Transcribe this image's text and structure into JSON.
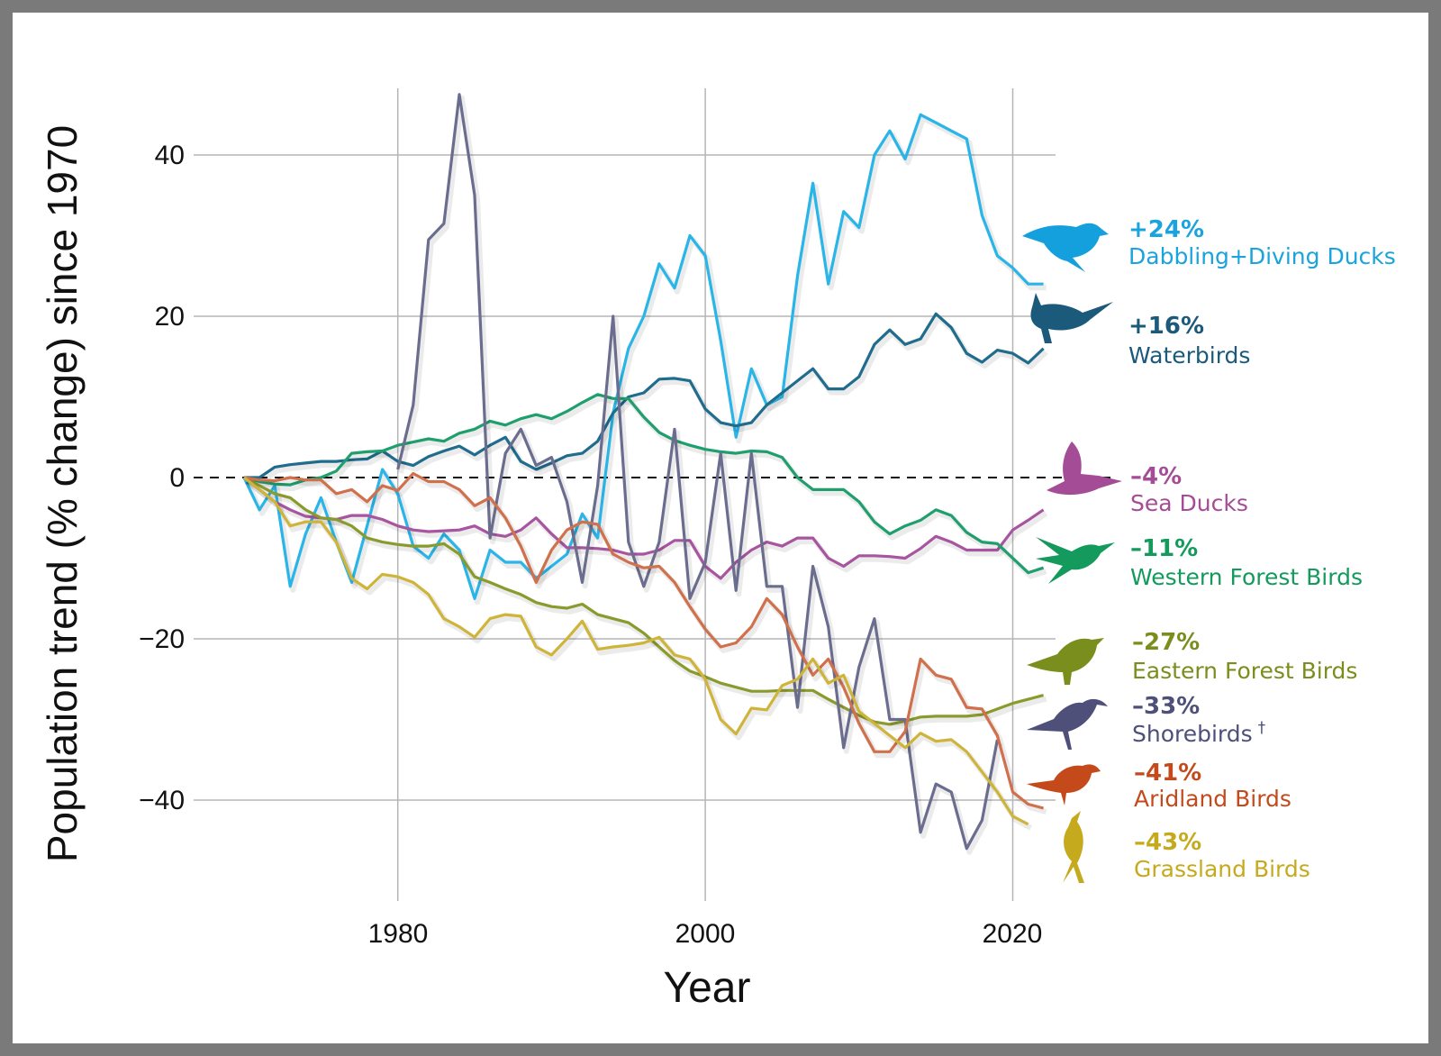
{
  "chart_data": {
    "type": "line",
    "title": "",
    "xlabel": "Year",
    "ylabel": "Population trend (% change) since 1970",
    "xlim": [
      1970,
      2022
    ],
    "ylim": [
      -50,
      50
    ],
    "x_ticks": [
      "1980",
      "2000",
      "2020"
    ],
    "y_ticks": [
      "40",
      "20",
      "0",
      "−20",
      "−40"
    ],
    "grid": true,
    "reference_line": {
      "y": 0,
      "style": "dashed"
    },
    "legend_placement": "right",
    "series": [
      {
        "name": "Dabbling+Diving Ducks",
        "label": "+24%",
        "color": "#29b5e8",
        "label_color": "#1aa3dc",
        "icon": "duck-silhouette-icon",
        "start": 1970,
        "values": [
          0,
          -4,
          -1,
          -13.5,
          -7,
          -2.5,
          -8,
          -13,
          -6,
          1,
          -2,
          -8.5,
          -10,
          -7,
          -9,
          -15,
          -9,
          -10.5,
          -10.5,
          -12.5,
          -11,
          -9.5,
          -4.5,
          -7.5,
          8,
          16,
          20,
          26.5,
          23.5,
          30,
          27.5,
          17,
          5,
          13.5,
          9,
          10,
          25,
          36.5,
          24,
          33,
          31,
          40,
          43,
          39.5,
          45,
          44,
          43,
          42,
          32.5,
          27.5,
          26,
          24,
          24
        ]
      },
      {
        "name": "Waterbirds",
        "label": "+16%",
        "color": "#1f6c8c",
        "label_color": "#1b5a7a",
        "icon": "waterbird-silhouette-icon",
        "start": 1970,
        "values": [
          0,
          0,
          1.3,
          1.6,
          1.8,
          2,
          2,
          2.2,
          2.3,
          3.3,
          2,
          1.5,
          2.6,
          3.3,
          3.9,
          2.8,
          4,
          5,
          2,
          1,
          1.8,
          2.7,
          3,
          4.5,
          8,
          10,
          10.5,
          12.2,
          12.3,
          12,
          8.5,
          6.8,
          6.4,
          6.8,
          9,
          10.5,
          12,
          13.5,
          11,
          11,
          12.5,
          16.5,
          18.3,
          16.5,
          17.2,
          20.3,
          18.6,
          15.4,
          14.3,
          15.8,
          15.4,
          14.2,
          16
        ]
      },
      {
        "name": "Sea Ducks",
        "label": "–4%",
        "color": "#a855a0",
        "label_color": "#a44d96",
        "icon": "sea-duck-silhouette-icon",
        "start": 1970,
        "values": [
          0,
          -1.5,
          -3,
          -4,
          -4.8,
          -5,
          -5.2,
          -4.7,
          -4.7,
          -5.2,
          -6,
          -6.5,
          -6.7,
          -6.6,
          -6.5,
          -6,
          -7,
          -7.3,
          -6.5,
          -5,
          -7,
          -8.7,
          -8.7,
          -8.8,
          -9,
          -9.5,
          -9.5,
          -9,
          -7.8,
          -7.8,
          -11,
          -12.5,
          -10.5,
          -9,
          -8,
          -8.5,
          -7.5,
          -7.5,
          -10,
          -11,
          -9.7,
          -9.7,
          -9.8,
          -10,
          -8.8,
          -7.3,
          -8,
          -9,
          -9,
          -9,
          -6.5,
          -5.3,
          -4
        ]
      },
      {
        "name": "Western Forest Birds",
        "label": "–11%",
        "color": "#1f9e6e",
        "label_color": "#139a5c",
        "icon": "hummingbird-silhouette-icon",
        "start": 1970,
        "values": [
          0,
          -0.5,
          -0.8,
          -0.9,
          -0.3,
          0,
          0.8,
          3,
          3.2,
          3.3,
          4,
          4.4,
          4.8,
          4.5,
          5.5,
          6,
          7,
          6.5,
          7.3,
          7.8,
          7.3,
          8.2,
          9.3,
          10.3,
          9.8,
          9.8,
          7.5,
          5.6,
          4.6,
          4,
          3.5,
          3.2,
          3,
          3.3,
          3.2,
          2.5,
          0,
          -1.5,
          -1.5,
          -1.5,
          -3,
          -5.5,
          -7,
          -6,
          -5.3,
          -4,
          -4.7,
          -6.8,
          -8,
          -8.2,
          -10,
          -11.8,
          -11.2
        ]
      },
      {
        "name": "Eastern Forest Birds",
        "label": "–27%",
        "color": "#8a9a2c",
        "label_color": "#7a8e1e",
        "icon": "songbird-silhouette-icon",
        "start": 1970,
        "values": [
          0,
          -1,
          -2,
          -2.5,
          -4,
          -5,
          -5.2,
          -6,
          -7.5,
          -8,
          -8.3,
          -8.5,
          -8.5,
          -8.2,
          -9.5,
          -12.3,
          -13,
          -13.8,
          -14.5,
          -15.5,
          -16,
          -16.2,
          -15.7,
          -17,
          -17.5,
          -18,
          -19.3,
          -21,
          -22.7,
          -24,
          -24.7,
          -25.5,
          -26,
          -26.5,
          -26.5,
          -26.4,
          -26.4,
          -26.4,
          -27.5,
          -28.5,
          -29.5,
          -30.3,
          -30.6,
          -30.2,
          -29.7,
          -29.6,
          -29.6,
          -29.6,
          -29.4,
          -28.7,
          -28,
          -27.5,
          -27
        ]
      },
      {
        "name": "Shorebirds",
        "name_suffix": "†",
        "label": "–33%",
        "color": "#6b6d8e",
        "label_color": "#4e507a",
        "icon": "shorebird-silhouette-icon",
        "start": 1980,
        "values": [
          1,
          9,
          29.5,
          31.5,
          47.5,
          35,
          -7.5,
          3,
          6,
          1.5,
          2.5,
          -3,
          -13,
          -1,
          20,
          -8,
          -13.5,
          -8,
          6,
          -15,
          -10.5,
          3,
          -14,
          3,
          -13.5,
          -13.5,
          -28.5,
          -11,
          -18.5,
          -33.5,
          -23.5,
          -17.5,
          -30,
          -30,
          -44,
          -38,
          -39,
          -46,
          -42.5,
          -32.5
        ]
      },
      {
        "name": "Aridland Birds",
        "label": "–41%",
        "color": "#d0704c",
        "label_color": "#c44a1c",
        "icon": "wren-silhouette-icon",
        "start": 1970,
        "values": [
          0,
          -0.3,
          -0.4,
          0,
          -0.3,
          -0.3,
          -2,
          -1.5,
          -3,
          -1,
          -1.6,
          0.5,
          -0.5,
          -0.5,
          -1.5,
          -3.5,
          -2.5,
          -5,
          -8.5,
          -13,
          -9,
          -6.5,
          -5.5,
          -5.8,
          -9.5,
          -10.5,
          -11.2,
          -11,
          -13,
          -16,
          -18.8,
          -21,
          -20.5,
          -18.5,
          -15,
          -17,
          -21,
          -24.5,
          -22.5,
          -26,
          -30.5,
          -34,
          -34,
          -31.5,
          -22.5,
          -24.5,
          -25,
          -28.5,
          -28.7,
          -32,
          -39,
          -40.5,
          -41
        ]
      },
      {
        "name": "Grassland Birds",
        "label": "–43%",
        "color": "#cfb43a",
        "label_color": "#c6aa1e",
        "icon": "meadowlark-silhouette-icon",
        "start": 1970,
        "values": [
          0,
          -1.5,
          -3,
          -6,
          -5.5,
          -5.5,
          -8,
          -12.5,
          -13.8,
          -12,
          -12.3,
          -13,
          -14.5,
          -17.5,
          -18.5,
          -19.8,
          -17.5,
          -17,
          -17.2,
          -21,
          -22,
          -20,
          -17.8,
          -21.3,
          -21,
          -20.8,
          -20.5,
          -19.8,
          -22,
          -22.5,
          -25,
          -30,
          -31.8,
          -28.6,
          -28.8,
          -25.8,
          -25,
          -22.5,
          -25.5,
          -24.5,
          -29,
          -30.5,
          -32,
          -33.5,
          -31.7,
          -32.7,
          -32.5,
          -34,
          -36.5,
          -39,
          -42,
          -43
        ]
      }
    ]
  }
}
